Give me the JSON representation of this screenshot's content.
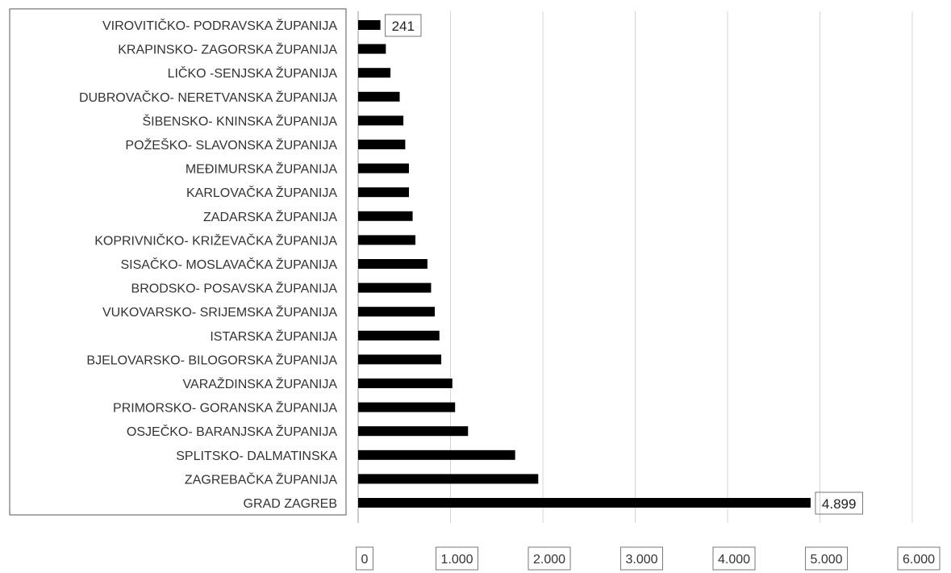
{
  "chart_data": {
    "type": "bar",
    "orientation": "horizontal",
    "title": "",
    "xlabel": "",
    "ylabel": "",
    "categories": [
      "VIROVITIČKO- PODRAVSKA ŽUPANIJA",
      "KRAPINSKO- ZAGORSKA ŽUPANIJA",
      "LIČKO -SENJSKA ŽUPANIJA",
      "DUBROVAČKO- NERETVANSKA ŽUPANIJA",
      "ŠIBENSKO- KNINSKA ŽUPANIJA",
      "POŽEŠKO- SLAVONSKA ŽUPANIJA",
      "MEĐIMURSKA ŽUPANIJA",
      "KARLOVAČKA ŽUPANIJA",
      "ZADARSKA ŽUPANIJA",
      "KOPRIVNIČKO- KRIŽEVAČKA ŽUPANIJA",
      "SISAČKO- MOSLAVAČKA ŽUPANIJA",
      "BRODSKO- POSAVSKA ŽUPANIJA",
      "VUKOVARSKO- SRIJEMSKA ŽUPANIJA",
      "ISTARSKA ŽUPANIJA",
      "BJELOVARSKO- BILOGORSKA ŽUPANIJA",
      "VARAŽDINSKA ŽUPANIJA",
      "PRIMORSKO- GORANSKA ŽUPANIJA",
      "OSJEČKO- BARANJSKA ŽUPANIJA",
      "SPLITSKO- DALMATINSKA",
      "ZAGREBAČKA ŽUPANIJA",
      "GRAD ZAGREB"
    ],
    "values": [
      241,
      300,
      350,
      450,
      490,
      510,
      550,
      550,
      590,
      620,
      750,
      790,
      830,
      880,
      900,
      1020,
      1050,
      1190,
      1700,
      1950,
      4899
    ],
    "data_labels": [
      {
        "category_index": 0,
        "text": "241"
      },
      {
        "category_index": 20,
        "text": "4.899"
      }
    ],
    "xlim": [
      0,
      6000
    ],
    "ticks": [
      {
        "value": 0,
        "label": "0"
      },
      {
        "value": 1000,
        "label": "1.000"
      },
      {
        "value": 2000,
        "label": "2.000"
      },
      {
        "value": 3000,
        "label": "3.000"
      },
      {
        "value": 4000,
        "label": "4.000"
      },
      {
        "value": 5000,
        "label": "5.000"
      },
      {
        "value": 6000,
        "label": "6.000"
      }
    ],
    "grid": true,
    "legend": "none",
    "colors": {
      "bar": "#000000",
      "grid": "#d4d4d4",
      "border": "#555555"
    }
  }
}
